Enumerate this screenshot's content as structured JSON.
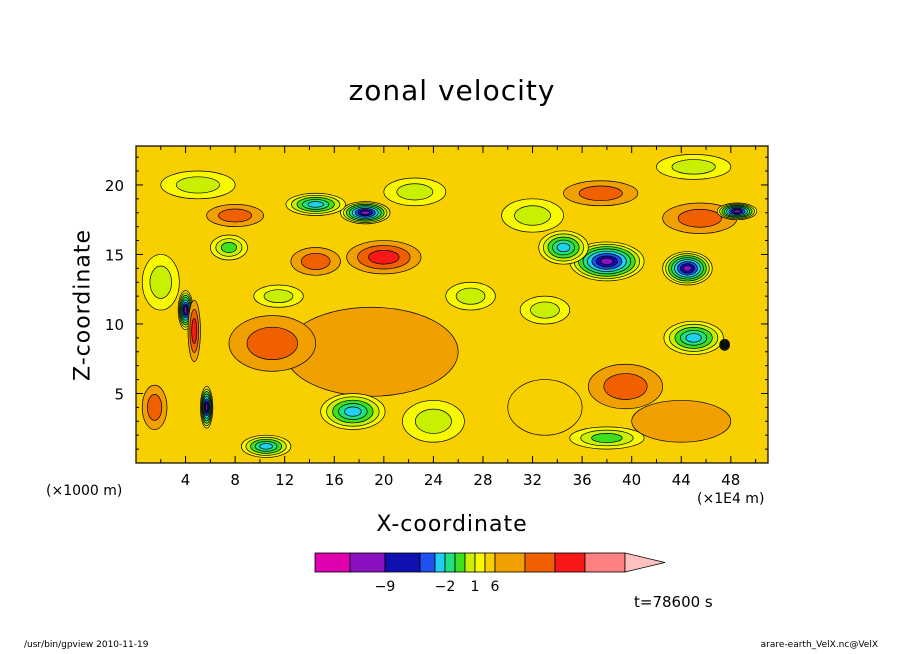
{
  "chart_data": {
    "type": "heatmap",
    "title": "zonal velocity",
    "xlabel": "X-coordinate",
    "ylabel": "Z-coordinate",
    "x_unit_label": "(×1E4 m)",
    "z_unit_label": "(×1000 m)",
    "x_ticks": [
      "4",
      "8",
      "12",
      "16",
      "20",
      "24",
      "28",
      "32",
      "36",
      "40",
      "44",
      "48"
    ],
    "y_ticks": [
      "5",
      "10",
      "15",
      "20"
    ],
    "xlim": [
      0,
      51
    ],
    "ylim": [
      0,
      22.8
    ],
    "grid": false,
    "colorbar": {
      "labels": [
        "−9",
        "−2",
        "1",
        "6"
      ],
      "levels": [
        -12,
        -9,
        -6,
        -3,
        -2,
        -1,
        0,
        1,
        2,
        3,
        6,
        9,
        12
      ],
      "colors": [
        "#e000b0",
        "#8a10c0",
        "#1010b0",
        "#2050f0",
        "#20d0f0",
        "#20e080",
        "#3de01e",
        "#c8f000",
        "#f8f800",
        "#f8d000",
        "#f0a000",
        "#f06000",
        "#f81818",
        "#ff8080",
        "#ffc0c0"
      ]
    },
    "field": {
      "background": 2,
      "blobs": [
        {
          "x": 45.5,
          "z": 17.6,
          "val": 8,
          "ellipse": [
            3.0,
            1.1
          ]
        },
        {
          "x": 44.5,
          "z": 14.0,
          "val": -11,
          "ellipse": [
            2.0,
            1.2
          ]
        },
        {
          "x": 48.5,
          "z": 18.1,
          "val": -10,
          "ellipse": [
            1.6,
            0.6
          ]
        },
        {
          "x": 38.0,
          "z": 14.5,
          "val": -12,
          "ellipse": [
            3.0,
            1.4
          ]
        },
        {
          "x": 34.5,
          "z": 15.5,
          "val": -3,
          "ellipse": [
            2.0,
            1.2
          ]
        },
        {
          "x": 37.5,
          "z": 19.4,
          "val": 6,
          "ellipse": [
            3.0,
            0.9
          ]
        },
        {
          "x": 20.0,
          "z": 14.8,
          "val": 9,
          "ellipse": [
            3.0,
            1.2
          ]
        },
        {
          "x": 14.5,
          "z": 14.5,
          "val": 6,
          "ellipse": [
            2.0,
            1.0
          ]
        },
        {
          "x": 8.0,
          "z": 17.8,
          "val": 6,
          "ellipse": [
            2.3,
            0.8
          ]
        },
        {
          "x": 18.5,
          "z": 18.0,
          "val": -10,
          "ellipse": [
            2.0,
            0.8
          ]
        },
        {
          "x": 14.5,
          "z": 18.6,
          "val": -3,
          "ellipse": [
            2.4,
            0.8
          ]
        },
        {
          "x": 7.5,
          "z": 15.5,
          "val": -1,
          "ellipse": [
            1.5,
            0.9
          ]
        },
        {
          "x": 19.0,
          "z": 8.0,
          "val": 5,
          "ellipse": [
            7.0,
            3.2
          ]
        },
        {
          "x": 11.0,
          "z": 8.6,
          "val": 6,
          "ellipse": [
            3.5,
            2.0
          ]
        },
        {
          "x": 39.5,
          "z": 5.5,
          "val": 6,
          "ellipse": [
            3.0,
            1.6
          ]
        },
        {
          "x": 45.0,
          "z": 9.0,
          "val": -3,
          "ellipse": [
            2.4,
            1.2
          ]
        },
        {
          "x": 47.5,
          "z": 8.5,
          "val": -11,
          "ellipse": [
            0.4,
            0.4
          ]
        },
        {
          "x": 17.5,
          "z": 3.7,
          "val": -3,
          "ellipse": [
            2.6,
            1.3
          ]
        },
        {
          "x": 10.5,
          "z": 1.2,
          "val": -3,
          "ellipse": [
            2.0,
            0.8
          ]
        },
        {
          "x": 4.0,
          "z": 11.0,
          "val": -12,
          "ellipse": [
            0.6,
            1.4
          ]
        },
        {
          "x": 4.7,
          "z": 9.5,
          "val": 10,
          "ellipse": [
            0.5,
            2.2
          ]
        },
        {
          "x": 5.7,
          "z": 4.0,
          "val": -10,
          "ellipse": [
            0.5,
            1.5
          ]
        },
        {
          "x": 1.5,
          "z": 4.0,
          "val": 6,
          "ellipse": [
            1.0,
            1.6
          ]
        },
        {
          "x": 38.0,
          "z": 1.8,
          "val": -1,
          "ellipse": [
            3.0,
            0.8
          ]
        },
        {
          "x": 27.0,
          "z": 12.0,
          "val": 0,
          "ellipse": [
            2.0,
            1.0
          ]
        },
        {
          "x": 22.5,
          "z": 19.5,
          "val": 0,
          "ellipse": [
            2.5,
            1.0
          ]
        },
        {
          "x": 45.0,
          "z": 21.3,
          "val": 0,
          "ellipse": [
            3.0,
            0.9
          ]
        },
        {
          "x": 33.0,
          "z": 11.0,
          "val": 0,
          "ellipse": [
            2.0,
            1.0
          ]
        },
        {
          "x": 32.0,
          "z": 17.8,
          "val": 0,
          "ellipse": [
            2.5,
            1.2
          ]
        },
        {
          "x": 5.0,
          "z": 20.0,
          "val": 0,
          "ellipse": [
            3.0,
            1.0
          ]
        },
        {
          "x": 2.0,
          "z": 13.0,
          "val": 0,
          "ellipse": [
            1.5,
            2.0
          ]
        },
        {
          "x": 24.0,
          "z": 3.0,
          "val": 0,
          "ellipse": [
            2.5,
            1.5
          ]
        },
        {
          "x": 33.0,
          "z": 4.0,
          "val": 2,
          "ellipse": [
            3.0,
            2.0
          ]
        },
        {
          "x": 44.0,
          "z": 3.0,
          "val": 3,
          "ellipse": [
            4.0,
            1.5
          ]
        },
        {
          "x": 11.5,
          "z": 12.0,
          "val": 0,
          "ellipse": [
            2.0,
            0.8
          ]
        }
      ]
    }
  },
  "time_label": "t=78600  s",
  "footer_left": "/usr/bin/gpview   2010-11-19",
  "footer_right": "arare-earth_VelX.nc@VelX"
}
